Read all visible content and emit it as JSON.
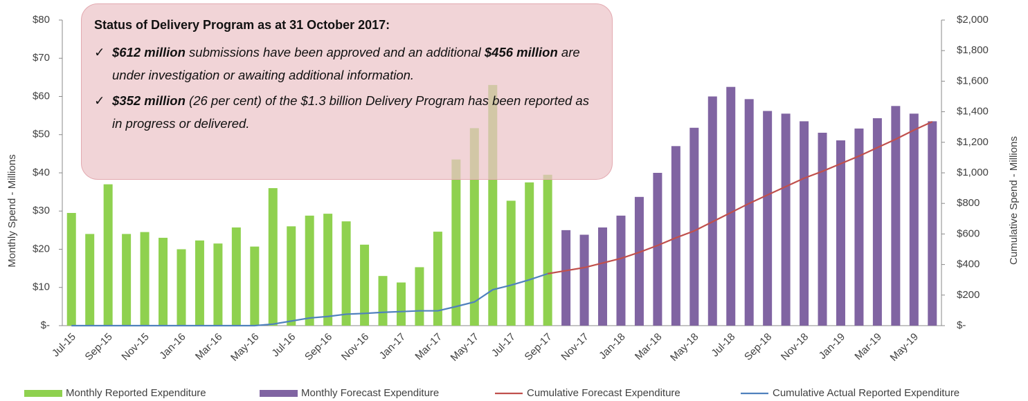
{
  "chart_data": {
    "type": "bar",
    "categories": [
      "Jul-15",
      null,
      "Sep-15",
      null,
      "Nov-15",
      null,
      "Jan-16",
      null,
      "Mar-16",
      null,
      "May-16",
      null,
      "Jul-16",
      null,
      "Sep-16",
      null,
      "Nov-16",
      null,
      "Jan-17",
      null,
      "Mar-17",
      null,
      "May-17",
      null,
      "Jul-17",
      null,
      "Sep-17",
      null,
      "Nov-17",
      null,
      "Jan-18",
      null,
      "Mar-18",
      null,
      "May-18",
      null,
      "Jul-18",
      null,
      "Sep-18",
      null,
      "Nov-18",
      null,
      "Jan-19",
      null,
      "Mar-19",
      null,
      "May-19",
      null
    ],
    "series": [
      {
        "name": "Monthly Reported Expenditure",
        "type": "bar",
        "color": "#8fd14f",
        "values": [
          29.5,
          24,
          37,
          24,
          24.5,
          23,
          20,
          22.3,
          21.5,
          25.7,
          20.7,
          36,
          26,
          28.8,
          29.3,
          27.3,
          21.2,
          13,
          11.3,
          15.3,
          24.6,
          43.5,
          51.7,
          63,
          32.7,
          37.5,
          39.5,
          null,
          null,
          null,
          null,
          null,
          null,
          null,
          null,
          null,
          null,
          null,
          null,
          null,
          null,
          null,
          null,
          null,
          null,
          null,
          null,
          null
        ]
      },
      {
        "name": "Monthly Forecast Expenditure",
        "type": "bar",
        "color": "#8064a2",
        "values": [
          null,
          null,
          null,
          null,
          null,
          null,
          null,
          null,
          null,
          null,
          null,
          null,
          null,
          null,
          null,
          null,
          null,
          null,
          null,
          null,
          null,
          null,
          null,
          null,
          null,
          null,
          null,
          25,
          23.8,
          25.7,
          28.8,
          33.7,
          40,
          47,
          51.8,
          60,
          62.5,
          59.3,
          56.2,
          55.5,
          53.5,
          50.5,
          48.5,
          51.6,
          54.3,
          57.5,
          55.5,
          53.5
        ]
      },
      {
        "name": "Cumulative Forecast Expenditure",
        "type": "line",
        "axis": "y2",
        "color": "#c0504d",
        "values": [
          null,
          null,
          null,
          null,
          null,
          null,
          null,
          null,
          null,
          null,
          null,
          null,
          null,
          null,
          null,
          null,
          null,
          null,
          null,
          null,
          null,
          null,
          null,
          null,
          null,
          null,
          340,
          360,
          380,
          410,
          440,
          480,
          525,
          575,
          620,
          680,
          740,
          800,
          855,
          910,
          965,
          1010,
          1060,
          1110,
          1165,
          1220,
          1280,
          1335
        ]
      },
      {
        "name": "Cumulative Actual Reported Expenditure",
        "type": "line",
        "axis": "y2",
        "color": "#4f81bd",
        "values": [
          0,
          0,
          0,
          0,
          0,
          0,
          0,
          0,
          0,
          0,
          0,
          10,
          30,
          50,
          60,
          75,
          80,
          87,
          92,
          97,
          97,
          125,
          155,
          235,
          265,
          300,
          340,
          null,
          null,
          null,
          null,
          null,
          null,
          null,
          null,
          null,
          null,
          null,
          null,
          null,
          null,
          null,
          null,
          null,
          null,
          null,
          null,
          null
        ]
      }
    ],
    "ylabel": "Monthly Spend - Millions",
    "y2label": "Cumulative Spend - Millions",
    "ylim": [
      0,
      80
    ],
    "yticks": [
      {
        "value": 0,
        "label": "$-"
      },
      {
        "value": 10,
        "label": "$10"
      },
      {
        "value": 20,
        "label": "$20"
      },
      {
        "value": 30,
        "label": "$30"
      },
      {
        "value": 40,
        "label": "$40"
      },
      {
        "value": 50,
        "label": "$50"
      },
      {
        "value": 60,
        "label": "$60"
      },
      {
        "value": 70,
        "label": "$70"
      },
      {
        "value": 80,
        "label": "$80"
      }
    ],
    "y2lim": [
      0,
      2000
    ],
    "y2ticks": [
      {
        "value": 0,
        "label": "$-"
      },
      {
        "value": 200,
        "label": "$200"
      },
      {
        "value": 400,
        "label": "$400"
      },
      {
        "value": 600,
        "label": "$600"
      },
      {
        "value": 800,
        "label": "$800"
      },
      {
        "value": 1000,
        "label": "$1,000"
      },
      {
        "value": 1200,
        "label": "$1,200"
      },
      {
        "value": 1400,
        "label": "$1,400"
      },
      {
        "value": 1600,
        "label": "$1,600"
      },
      {
        "value": 1800,
        "label": "$1,800"
      },
      {
        "value": 2000,
        "label": "$2,000"
      }
    ],
    "legend": "bottom",
    "annotation": {
      "title": "Status of Delivery Program as at 31 October 2017:",
      "marker": "✓",
      "items": [
        [
          {
            "text": "$612 million",
            "bold": true
          },
          {
            "text": " submissions have been approved and an additional ",
            "bold": false
          },
          {
            "text": "$456 million",
            "bold": true
          },
          {
            "text": " are under investigation or awaiting additional information.",
            "bold": false
          }
        ],
        [
          {
            "text": "$352 million",
            "bold": true
          },
          {
            "text": " (26 per cent) of the $1.3 billion Delivery Program has been reported as in progress or delivered.",
            "bold": false
          }
        ]
      ]
    }
  }
}
